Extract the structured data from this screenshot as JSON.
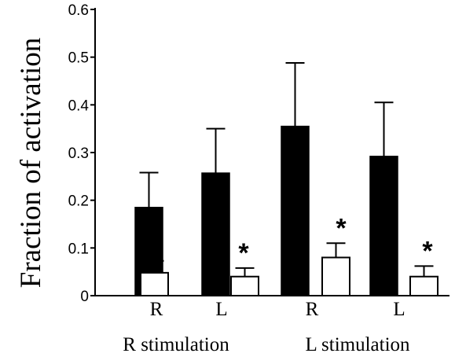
{
  "chart_data": {
    "type": "bar",
    "title": "",
    "xlabel": "",
    "ylabel": "Fraction of activation",
    "ylim": [
      0,
      0.6
    ],
    "yticks": [
      "0",
      "0.1",
      "0.2",
      "0.3",
      "0.4",
      "0.5",
      "0.6"
    ],
    "categories": [
      "R",
      "L",
      "R",
      "L"
    ],
    "groups": [
      "R stimulation",
      "L stimulation"
    ],
    "series": [
      {
        "color": "#000000",
        "values": [
          0.185,
          0.257,
          0.355,
          0.292
        ],
        "error_upper": [
          0.258,
          0.35,
          0.488,
          0.405
        ]
      },
      {
        "color": "#ffffff",
        "values": [
          0.048,
          0.04,
          0.08,
          0.04
        ],
        "error_upper": [
          0.073,
          0.058,
          0.11,
          0.062
        ]
      }
    ],
    "annotations": [
      "*",
      "*",
      "*",
      "*"
    ],
    "grid": false,
    "legend": "none"
  }
}
